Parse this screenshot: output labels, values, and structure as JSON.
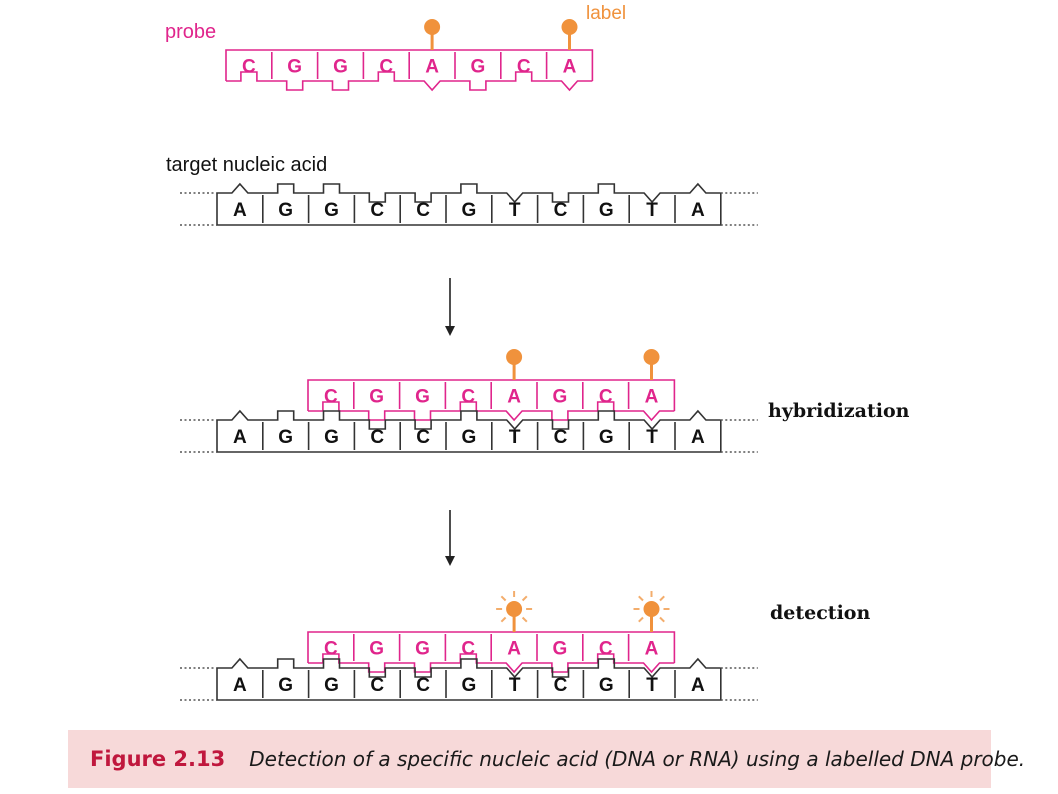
{
  "labels": {
    "probe": "probe",
    "label": "label",
    "target": "target nucleic acid",
    "hybridization": "hybridization",
    "detection": "detection"
  },
  "probe_sequence": [
    "C",
    "G",
    "G",
    "C",
    "A",
    "G",
    "C",
    "A"
  ],
  "target_sequence": [
    "A",
    "G",
    "G",
    "C",
    "C",
    "G",
    "T",
    "C",
    "G",
    "T",
    "A"
  ],
  "labelled_bases": [
    "A"
  ],
  "caption": {
    "number": "Figure 2.13",
    "text": "Detection of a specific nucleic acid (DNA or RNA) using a labelled DNA probe."
  },
  "colors": {
    "probe": "#e0258c",
    "label": "#f0923c",
    "strand": "#333333",
    "caption_bg": "#f7d9d9",
    "caption_number": "#c0173d"
  }
}
